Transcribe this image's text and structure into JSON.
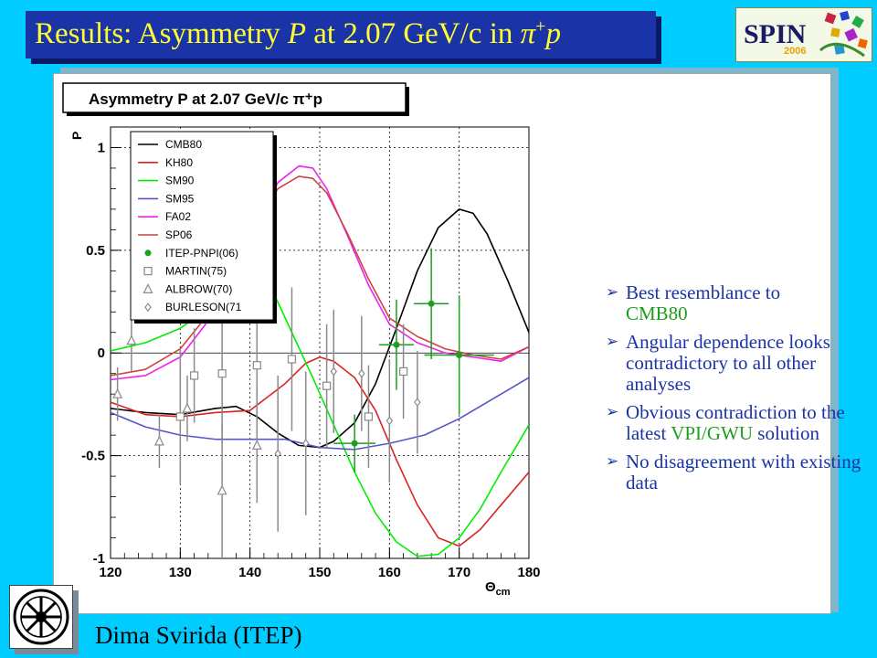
{
  "header": {
    "title_prefix": "Results: Asymmetry ",
    "title_var": "P",
    "title_mid": " at 2.07 GeV/c in ",
    "title_pi": "π",
    "title_sup": "+",
    "title_p": "p"
  },
  "logo": {
    "word": "SPIN",
    "year": "2006"
  },
  "bullets": [
    {
      "line1": "Best resemblance to",
      "line2": "CMB80"
    },
    {
      "text": "Angular dependence looks contradictory to all other analyses"
    },
    {
      "pre": "Obvious contradiction to the latest ",
      "hl": "VPI/GWU",
      "post": " solution"
    },
    {
      "text": "No disagreement with existing data"
    }
  ],
  "footer": {
    "author": "Dima Svirida (ITEP)"
  },
  "colors": {
    "background": "#00ccff",
    "title_bar": "#1a33a6",
    "title_text": "#ffff33",
    "bullet_text": "#1a33a6",
    "highlight": "#1e9e1e"
  },
  "chart_data": {
    "type": "line",
    "title": "Asymmetry P at 2.07 GeV/c π⁺p",
    "xlabel": "Θcm",
    "ylabel": "P",
    "xlim": [
      120,
      180
    ],
    "ylim": [
      -1,
      1.1
    ],
    "x_ticks": [
      120,
      130,
      140,
      150,
      160,
      170,
      180
    ],
    "y_ticks": [
      -1,
      -0.5,
      0,
      0.5,
      1
    ],
    "x_tick_labels": [
      "120",
      "130",
      "140",
      "150",
      "160",
      "170",
      "180"
    ],
    "y_tick_labels": [
      "-1",
      "-0.5",
      "0",
      "0.5",
      "1"
    ],
    "legend": {
      "placement": "top-left",
      "entries": [
        "CMB80",
        "KH80",
        "SM90",
        "SM95",
        "FA02",
        "SP06",
        "ITEP-PNPI(06)",
        "MARTIN(75)",
        "ALBROW(70)",
        "BURLESON(71"
      ]
    },
    "curves": [
      {
        "name": "CMB80",
        "color": "#000000",
        "x": [
          120,
          125,
          130,
          135,
          138,
          141,
          144,
          147,
          150,
          152,
          155,
          158,
          161,
          164,
          167,
          170,
          172,
          174,
          177,
          180
        ],
        "y": [
          -0.27,
          -0.29,
          -0.3,
          -0.27,
          -0.26,
          -0.31,
          -0.39,
          -0.45,
          -0.46,
          -0.43,
          -0.34,
          -0.15,
          0.12,
          0.4,
          0.61,
          0.7,
          0.68,
          0.58,
          0.35,
          0.1
        ]
      },
      {
        "name": "KH80",
        "color": "#dd2222",
        "x": [
          120,
          125,
          130,
          135,
          140,
          145,
          148,
          150,
          152,
          155,
          158,
          161,
          164,
          167,
          170,
          173,
          176,
          180
        ],
        "y": [
          -0.24,
          -0.3,
          -0.31,
          -0.29,
          -0.28,
          -0.15,
          -0.05,
          -0.02,
          -0.04,
          -0.12,
          -0.28,
          -0.52,
          -0.74,
          -0.9,
          -0.94,
          -0.86,
          -0.74,
          -0.58
        ]
      },
      {
        "name": "SM90",
        "color": "#00ee00",
        "x": [
          120,
          125,
          130,
          135,
          140,
          143,
          146,
          149,
          152,
          155,
          158,
          161,
          164,
          167,
          170,
          173,
          176,
          180
        ],
        "y": [
          0.01,
          0.05,
          0.12,
          0.24,
          0.4,
          0.32,
          0.1,
          -0.12,
          -0.35,
          -0.58,
          -0.78,
          -0.92,
          -0.99,
          -0.98,
          -0.9,
          -0.76,
          -0.58,
          -0.35
        ]
      },
      {
        "name": "SM95",
        "color": "#5555cc",
        "x": [
          120,
          125,
          130,
          135,
          140,
          145,
          150,
          155,
          160,
          165,
          170,
          175,
          180
        ],
        "y": [
          -0.29,
          -0.36,
          -0.4,
          -0.42,
          -0.42,
          -0.42,
          -0.46,
          -0.47,
          -0.44,
          -0.4,
          -0.32,
          -0.22,
          -0.12
        ]
      },
      {
        "name": "FA02",
        "color": "#ee22ee",
        "x": [
          120,
          125,
          130,
          135,
          140,
          144,
          147,
          149,
          151,
          154,
          157,
          160,
          164,
          168,
          172,
          176,
          180
        ],
        "y": [
          -0.13,
          -0.11,
          -0.02,
          0.2,
          0.55,
          0.83,
          0.91,
          0.9,
          0.8,
          0.57,
          0.33,
          0.14,
          0.05,
          0.0,
          -0.02,
          -0.04,
          0.03
        ]
      },
      {
        "name": "SP06",
        "color": "#cc4444",
        "x": [
          120,
          125,
          130,
          135,
          140,
          144,
          147,
          149,
          151,
          154,
          157,
          160,
          164,
          168,
          172,
          176,
          180
        ],
        "y": [
          -0.11,
          -0.08,
          0.02,
          0.23,
          0.55,
          0.8,
          0.86,
          0.85,
          0.78,
          0.58,
          0.36,
          0.17,
          0.08,
          0.02,
          -0.01,
          -0.03,
          0.03
        ]
      }
    ],
    "data_series": [
      {
        "name": "ITEP-PNPI(06)",
        "marker": "filled-circle",
        "color": "#1e9e1e",
        "x": [
          155,
          161,
          166,
          170
        ],
        "y": [
          -0.44,
          0.04,
          0.24,
          -0.01
        ],
        "yerr": [
          0.14,
          0.22,
          0.27,
          0.29
        ],
        "xerr": [
          3,
          2.5,
          2.5,
          5
        ]
      },
      {
        "name": "MARTIN(75)",
        "marker": "open-square",
        "color": "#8a8a8a",
        "x": [
          130,
          132,
          136,
          141,
          146,
          151,
          157,
          162
        ],
        "y": [
          -0.31,
          -0.11,
          -0.1,
          -0.06,
          -0.03,
          -0.16,
          -0.31,
          -0.09
        ],
        "yerr": [
          0.33,
          0.23,
          0.34,
          0.26,
          0.35,
          0.3,
          0.25,
          0.23
        ]
      },
      {
        "name": "ALBROW(70)",
        "marker": "open-triangle",
        "color": "#8a8a8a",
        "x": [
          121,
          123,
          127,
          131,
          136,
          141
        ],
        "y": [
          -0.2,
          0.06,
          -0.43,
          -0.27,
          -0.67,
          -0.45
        ],
        "yerr": [
          0.13,
          0.15,
          0.13,
          0.16,
          0.33,
          0.28
        ]
      },
      {
        "name": "BURLESON(71",
        "marker": "open-diamond",
        "color": "#8a8a8a",
        "x": [
          144,
          148,
          152,
          156,
          160,
          164
        ],
        "y": [
          -0.49,
          -0.44,
          -0.09,
          -0.1,
          -0.33,
          -0.24
        ],
        "yerr": [
          0.38,
          0.35,
          0.3,
          0.28,
          0.3,
          0.25
        ]
      }
    ]
  }
}
